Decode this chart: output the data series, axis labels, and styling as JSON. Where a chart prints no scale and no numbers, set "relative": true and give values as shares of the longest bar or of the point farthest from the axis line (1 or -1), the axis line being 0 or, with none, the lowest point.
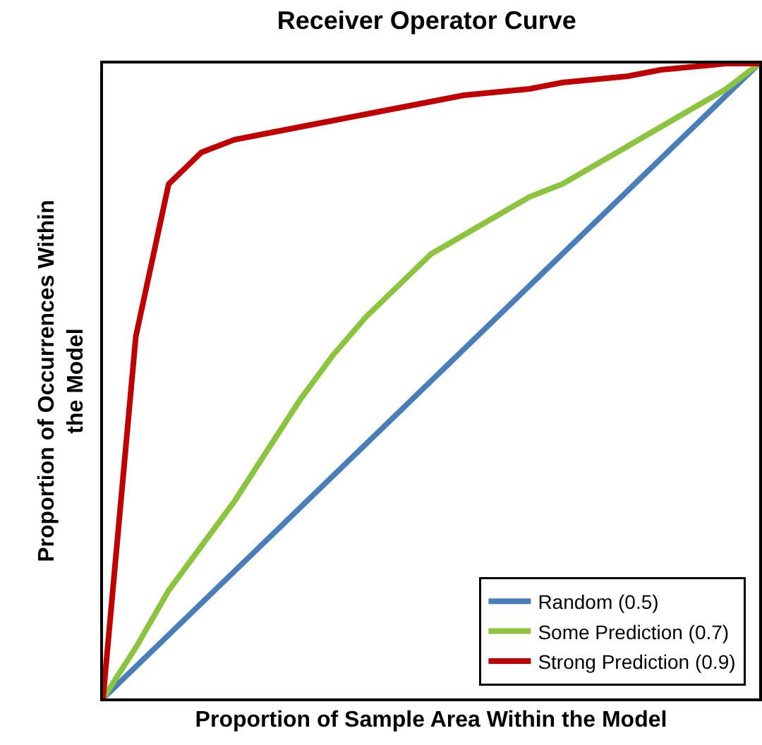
{
  "chart_data": {
    "type": "line",
    "title": "Receiver Operator Curve",
    "xlabel": "Proportion of Sample Area Within the Model",
    "ylabel": "Proportion of Occurrences Within the Model",
    "relative": true,
    "categories": [
      null,
      null,
      null,
      null,
      null,
      null,
      null,
      null,
      null,
      null,
      null,
      null,
      null,
      null,
      null,
      null,
      null,
      null,
      null,
      null,
      null
    ],
    "series": [
      {
        "name": "Random (0.5)",
        "color": "#4a7ebb",
        "values": [
          0,
          0.05,
          0.1,
          0.15,
          0.2,
          0.25,
          0.3,
          0.35,
          0.4,
          0.45,
          0.5,
          0.55,
          0.6,
          0.65,
          0.7,
          0.75,
          0.8,
          0.85,
          0.9,
          0.95,
          1
        ]
      },
      {
        "name": "Some Prediction (0.7)",
        "color": "#8cc43f",
        "values": [
          0,
          0.08,
          0.17,
          0.24,
          0.31,
          0.39,
          0.47,
          0.54,
          0.6,
          0.65,
          0.7,
          0.73,
          0.76,
          0.79,
          0.81,
          0.84,
          0.87,
          0.9,
          0.93,
          0.96,
          1
        ]
      },
      {
        "name": "Strong Prediction (0.9)",
        "color": "#c00000",
        "values": [
          0,
          0.57,
          0.81,
          0.86,
          0.88,
          0.89,
          0.9,
          0.91,
          0.92,
          0.93,
          0.94,
          0.95,
          0.955,
          0.96,
          0.97,
          0.975,
          0.98,
          0.99,
          0.995,
          1,
          1
        ]
      }
    ],
    "legend": "bottom right",
    "grid": false,
    "marker": "none",
    "line_style": "solid"
  }
}
